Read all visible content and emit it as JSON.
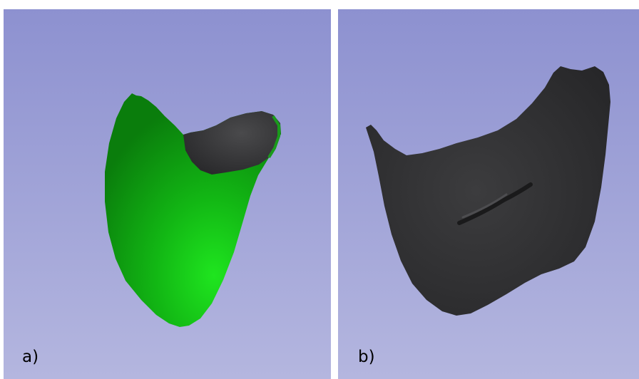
{
  "panels": [
    {
      "label": "a)",
      "background_top": "#8e92d0",
      "background_bottom": "#b3b5de",
      "model_color": "#10b214",
      "inner_color": "#38383a"
    },
    {
      "label": "b)",
      "background_top": "#8e92d0",
      "background_bottom": "#b3b5de",
      "model_color": "#2f2f31"
    }
  ]
}
